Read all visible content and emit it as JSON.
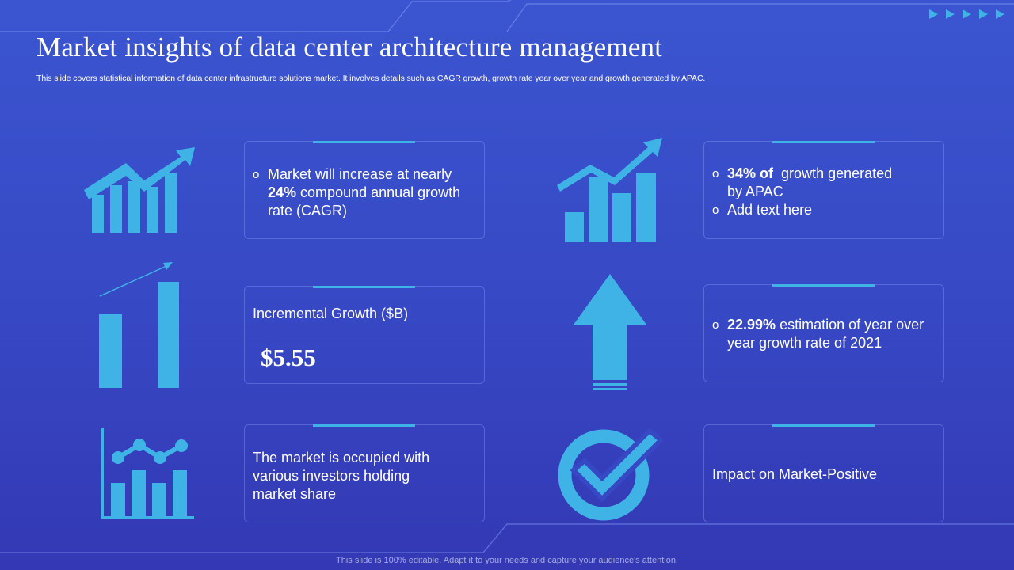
{
  "title": "Market insights of data center architecture management",
  "subtitle": "This slide covers statistical information of data center infrastructure solutions market. It involves details such as CAGR growth, growth rate year over year and growth generated by APAC.",
  "footer": "This slide is 100% editable. Adapt it to your needs and capture your audience's attention.",
  "colors": {
    "accent": "#3fb3e6",
    "background": "#3748c4",
    "text": "#ffffff"
  },
  "cards": {
    "cagr": {
      "bullet": "o",
      "bold": "24%",
      "pre": "Market will increase at nearly",
      "post": "compound annual growth rate (CAGR)"
    },
    "apac": {
      "bullet": "o",
      "bold": "34% of",
      "text1": "growth generated by APAC",
      "text2": "Add text here"
    },
    "incremental": {
      "label": "Incremental Growth ($B)",
      "value": "$5.55"
    },
    "yoy": {
      "bullet": "o",
      "bold": "22.99%",
      "text": "estimation of year over year growth rate of 2021"
    },
    "investors": {
      "text": "The market is occupied with various investors holding market share"
    },
    "impact": {
      "text": "Impact on Market-Positive"
    }
  },
  "icons": [
    "growth-chart-icon",
    "bar-chart-rising-icon",
    "bar-chart-trend-icon",
    "up-arrow-icon",
    "line-bar-chart-icon",
    "checkmark-circle-icon",
    "play-arrows-icon"
  ]
}
